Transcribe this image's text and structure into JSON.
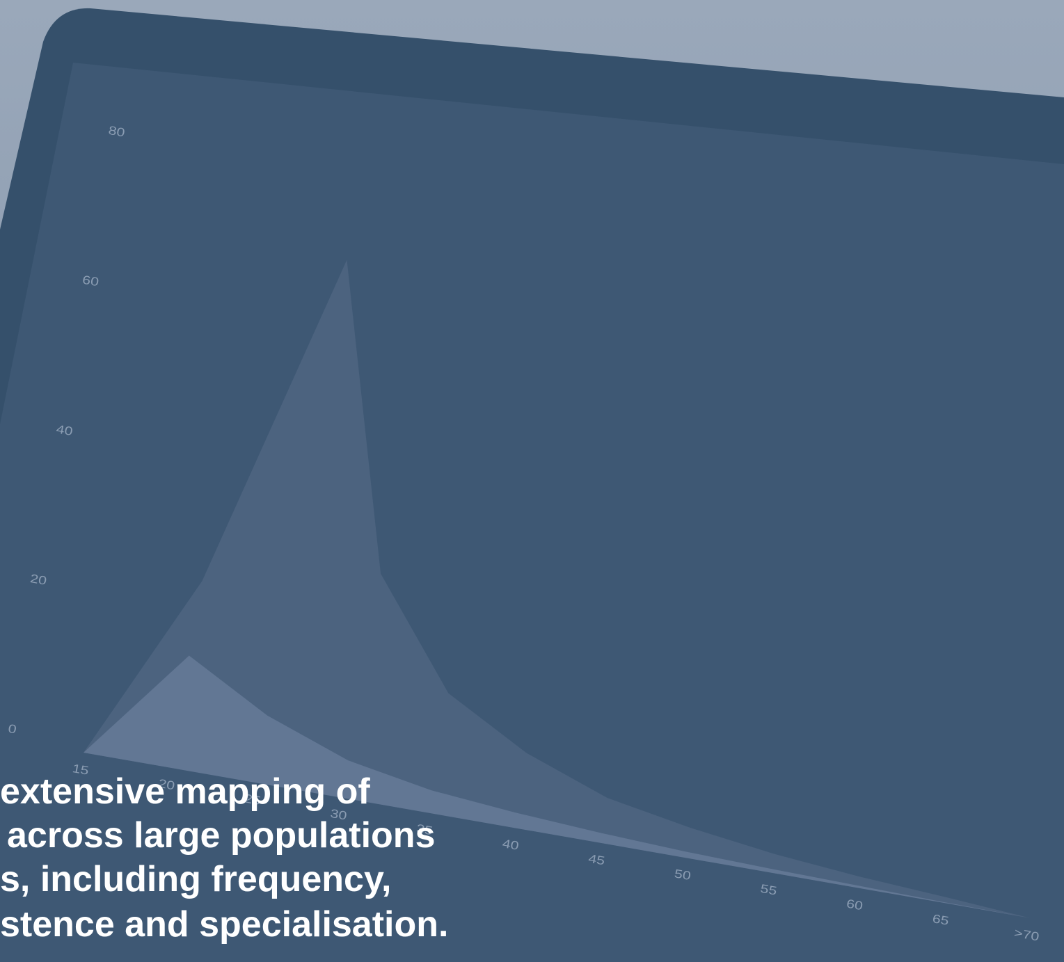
{
  "chart_data": {
    "type": "area",
    "categories": [
      "15",
      "20",
      "25",
      "30",
      "35",
      "40",
      "45",
      "50",
      "55",
      "60",
      "65",
      ">70"
    ],
    "series": [
      {
        "color": "#4c637f",
        "values": [
          0,
          25,
          70,
          30,
          16,
          10,
          6,
          4,
          2.5,
          1.5,
          0.8,
          0
        ]
      },
      {
        "color": "#627794",
        "values": [
          0,
          15,
          9,
          5,
          3,
          2,
          1.3,
          0.8,
          0.5,
          0.3,
          0.1,
          0
        ]
      }
    ],
    "ylim": [
      0,
      80
    ],
    "yticks": [
      0,
      20,
      40,
      60,
      80
    ]
  },
  "caption": {
    "lines": [
      "extensive mapping of",
      "across large populations",
      "s, including frequency,",
      "stence and specialisation."
    ]
  }
}
